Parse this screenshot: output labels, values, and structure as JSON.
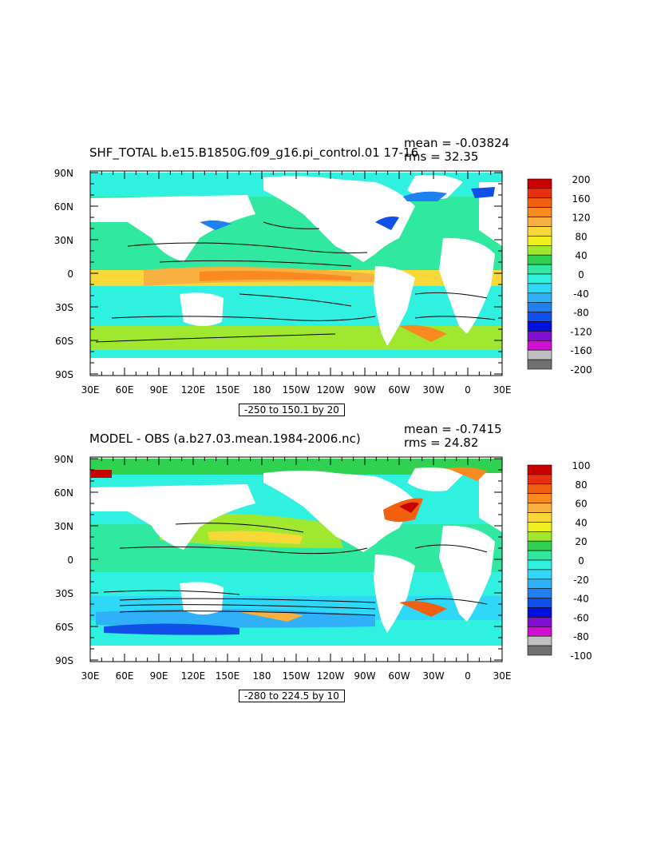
{
  "maps": [
    {
      "title": "SHF_TOTAL b.e15.B1850G.f09_g16.pi_control.01 17-16",
      "mean_label": "mean = -0.03824",
      "rms_label": "rms = 32.35",
      "contour_info": "-250 to 150.1 by 20",
      "lat_labels": [
        "90N",
        "60N",
        "30N",
        "0",
        "30S",
        "60S",
        "90S"
      ],
      "lon_labels": [
        "30E",
        "60E",
        "90E",
        "120E",
        "150E",
        "180",
        "150W",
        "120W",
        "90W",
        "60W",
        "30W",
        "0",
        "30E"
      ],
      "colorbar": {
        "labels": [
          "200",
          "160",
          "120",
          "80",
          "40",
          "0",
          "-40",
          "-80",
          "-120",
          "-160",
          "-200"
        ],
        "colors": [
          "#c80000",
          "#e83010",
          "#f06010",
          "#f88a20",
          "#f8b040",
          "#f8d838",
          "#f0f020",
          "#a0e830",
          "#30d050",
          "#30e8a0",
          "#30f0e0",
          "#30d8f8",
          "#30b0f8",
          "#2080f0",
          "#1050e8",
          "#0010e0",
          "#8010d0",
          "#d010d0",
          "#c0c0c0",
          "#707070"
        ]
      }
    },
    {
      "title": "MODEL - OBS (a.b27.03.mean.1984-2006.nc)",
      "mean_label": "mean = -0.7415",
      "rms_label": "rms = 24.82",
      "contour_info": "-280 to 224.5 by 10",
      "lat_labels": [
        "90N",
        "60N",
        "30N",
        "0",
        "30S",
        "60S",
        "90S"
      ],
      "lon_labels": [
        "30E",
        "60E",
        "90E",
        "120E",
        "150E",
        "180",
        "150W",
        "120W",
        "90W",
        "60W",
        "30W",
        "0",
        "30E"
      ],
      "colorbar": {
        "labels": [
          "100",
          "80",
          "60",
          "40",
          "20",
          "0",
          "-20",
          "-40",
          "-60",
          "-80",
          "-100"
        ],
        "colors": [
          "#c80000",
          "#e83010",
          "#f06010",
          "#f88a20",
          "#f8b040",
          "#f8d838",
          "#f0f020",
          "#a0e830",
          "#30d050",
          "#30e8a0",
          "#30f0e0",
          "#30d8f8",
          "#30b0f8",
          "#2080f0",
          "#1050e8",
          "#0010e0",
          "#8010d0",
          "#d010d0",
          "#c0c0c0",
          "#707070"
        ]
      }
    }
  ]
}
